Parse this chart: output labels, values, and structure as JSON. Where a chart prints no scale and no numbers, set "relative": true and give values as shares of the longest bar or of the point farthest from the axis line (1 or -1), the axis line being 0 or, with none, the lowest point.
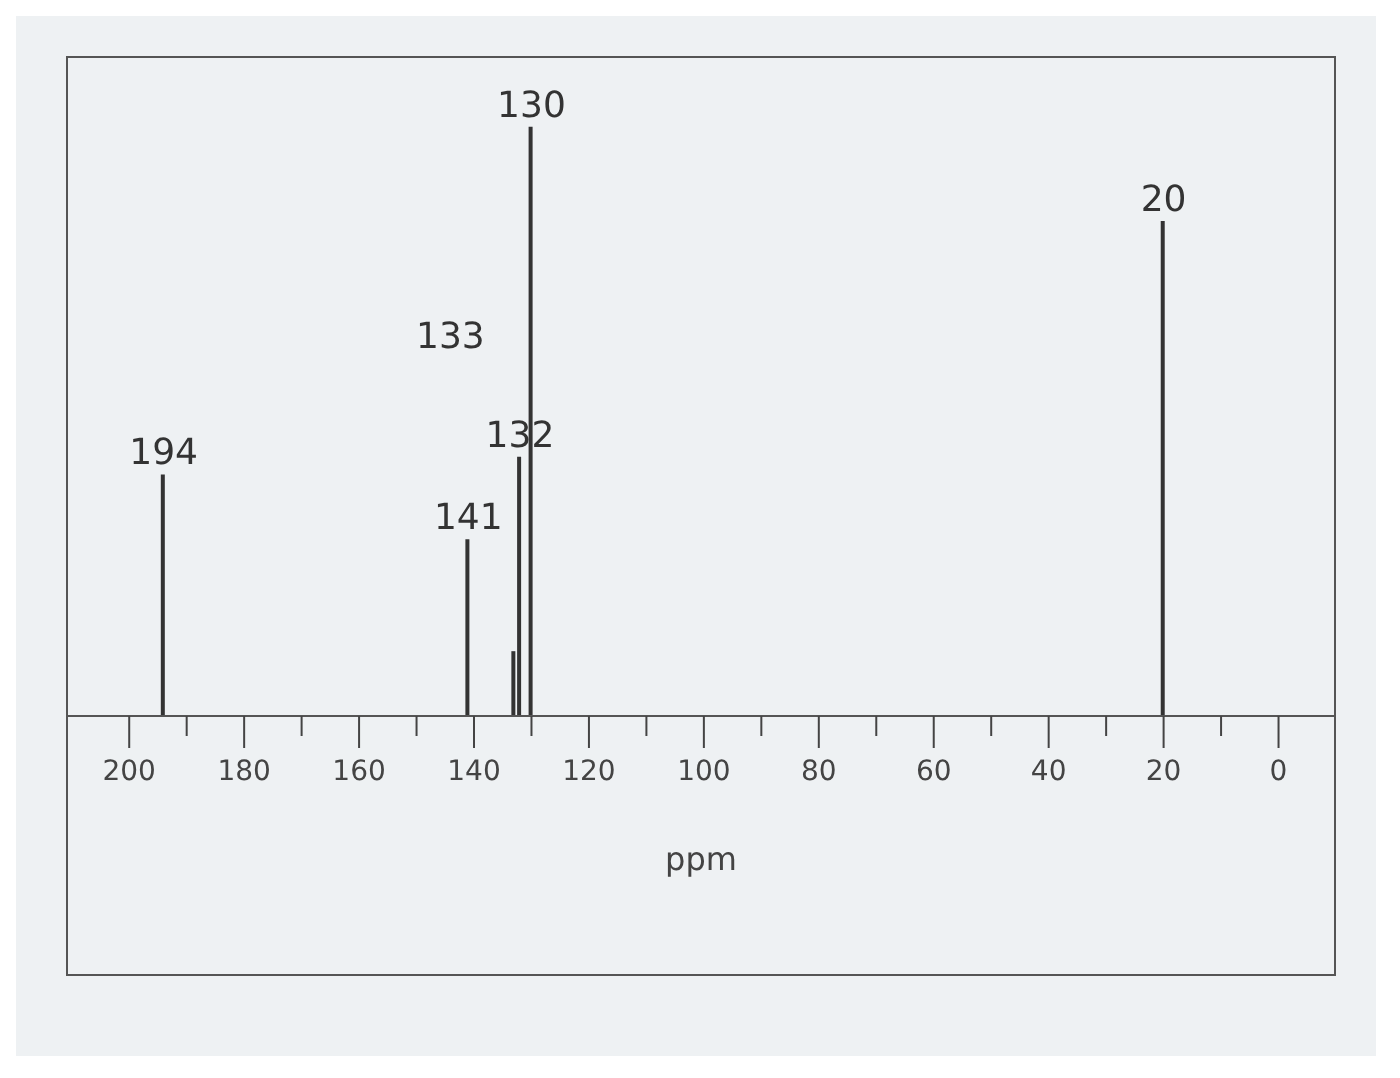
{
  "chart_data": {
    "type": "bar",
    "xlabel": "ppm",
    "x": [
      194,
      141,
      133,
      132,
      130,
      20
    ],
    "values": [
      0.41,
      0.3,
      0.11,
      0.44,
      1,
      0.84
    ],
    "color": "#333333",
    "relative": true,
    "xlim": [
      211,
      -10
    ],
    "xticks": [
      200,
      {
        "value": 190,
        "label": null
      },
      180,
      {
        "value": 170,
        "label": null
      },
      160,
      {
        "value": 150,
        "label": null
      },
      140,
      {
        "value": 130,
        "label": null
      },
      120,
      {
        "value": 110,
        "label": null
      },
      100,
      {
        "value": 90,
        "label": null
      },
      80,
      {
        "value": 70,
        "label": null
      },
      60,
      {
        "value": 50,
        "label": null
      },
      40,
      {
        "value": 30,
        "label": null
      },
      20,
      {
        "value": 10,
        "label": null
      },
      0
    ],
    "annotations": [
      {
        "text": "194",
        "x": 194,
        "y": 0.41
      },
      {
        "text": "141",
        "x": 141,
        "y": 0.3
      },
      "133",
      {
        "text": "132",
        "x": 132,
        "y": 0.44
      },
      {
        "text": "130",
        "x": 130,
        "y": 1
      },
      {
        "text": "20",
        "x": 20,
        "y": 0.84
      }
    ],
    "tick_labels": "x"
  }
}
